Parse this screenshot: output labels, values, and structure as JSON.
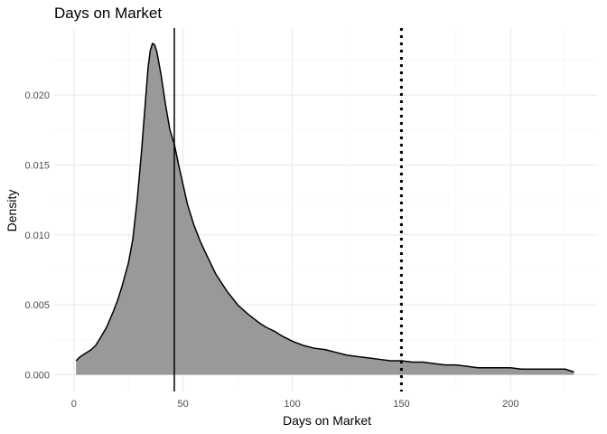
{
  "chart_data": {
    "type": "area",
    "title": "Days on Market",
    "xlabel": "Days on Market",
    "ylabel": "Density",
    "xlim": [
      -9,
      240
    ],
    "ylim": [
      -0.0012,
      0.0248
    ],
    "x_ticks": [
      0,
      50,
      100,
      150,
      200
    ],
    "y_ticks": [
      0.0,
      0.005,
      0.01,
      0.015,
      0.02
    ],
    "y_tick_labels": [
      "0.000",
      "0.005",
      "0.010",
      "0.015",
      "0.020"
    ],
    "grid": true,
    "legend": "none",
    "fill_color": "#999999",
    "line_color": "#000000",
    "series": [
      {
        "x": [
          1,
          3,
          5,
          8,
          10,
          12,
          15,
          18,
          20,
          22,
          25,
          27,
          29,
          31,
          33,
          34,
          35,
          36,
          37,
          38,
          40,
          42,
          44,
          46,
          48,
          50,
          52,
          55,
          58,
          61,
          65,
          70,
          75,
          80,
          85,
          88,
          92,
          95,
          100,
          105,
          110,
          115,
          120,
          125,
          130,
          135,
          140,
          145,
          150,
          155,
          160,
          165,
          170,
          175,
          180,
          185,
          190,
          195,
          200,
          205,
          210,
          215,
          220,
          225,
          229
        ],
        "y": [
          0.001,
          0.0013,
          0.0015,
          0.0018,
          0.0021,
          0.0026,
          0.0034,
          0.0045,
          0.0053,
          0.0063,
          0.008,
          0.0097,
          0.0125,
          0.016,
          0.02,
          0.022,
          0.0232,
          0.0237,
          0.0236,
          0.0231,
          0.0214,
          0.0193,
          0.0175,
          0.0165,
          0.015,
          0.0136,
          0.0122,
          0.0107,
          0.0095,
          0.0085,
          0.0072,
          0.006,
          0.005,
          0.0043,
          0.0037,
          0.0034,
          0.0031,
          0.0028,
          0.0024,
          0.0021,
          0.0019,
          0.0018,
          0.0016,
          0.0014,
          0.0013,
          0.0012,
          0.0011,
          0.001,
          0.001,
          0.0009,
          0.0009,
          0.0008,
          0.0007,
          0.0007,
          0.0006,
          0.0005,
          0.0005,
          0.0005,
          0.0005,
          0.0004,
          0.0004,
          0.0004,
          0.0004,
          0.0004,
          0.0002
        ]
      }
    ],
    "reference_lines": [
      {
        "x": 46,
        "style": "solid"
      },
      {
        "x": 150,
        "style": "dotted"
      }
    ]
  }
}
